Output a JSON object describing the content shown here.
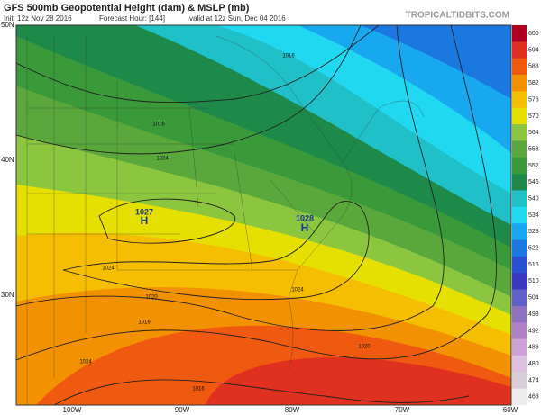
{
  "header": {
    "title": "GFS 500mb Geopotential Height (dam) & MSLP (mb)",
    "init": "Init: 12z Nov 28 2016",
    "forecast_hour": "Forecast Hour: [144]",
    "valid": "valid at 12z Sun, Dec 04 2016",
    "site": "TROPICALTIDBITS.COM"
  },
  "colorbar": {
    "levels": [
      {
        "label": "600",
        "color": "#b00020"
      },
      {
        "label": "594",
        "color": "#e03020"
      },
      {
        "label": "588",
        "color": "#f05a10"
      },
      {
        "label": "582",
        "color": "#f39200"
      },
      {
        "label": "576",
        "color": "#f5be00"
      },
      {
        "label": "570",
        "color": "#e6e000"
      },
      {
        "label": "564",
        "color": "#8cc63f"
      },
      {
        "label": "558",
        "color": "#5aa83c"
      },
      {
        "label": "552",
        "color": "#3a9a3a"
      },
      {
        "label": "546",
        "color": "#1e8a4a"
      },
      {
        "label": "540",
        "color": "#20c0c8"
      },
      {
        "label": "534",
        "color": "#20d8f0"
      },
      {
        "label": "528",
        "color": "#18a8f0"
      },
      {
        "label": "522",
        "color": "#1a78e0"
      },
      {
        "label": "516",
        "color": "#2850d0"
      },
      {
        "label": "510",
        "color": "#3838c0"
      },
      {
        "label": "504",
        "color": "#6060c8"
      },
      {
        "label": "498",
        "color": "#9070c0"
      },
      {
        "label": "492",
        "color": "#b080c8"
      },
      {
        "label": "486",
        "color": "#d0a0d8"
      },
      {
        "label": "480",
        "color": "#e0c0e0"
      },
      {
        "label": "474",
        "color": "#d8d0d8"
      },
      {
        "label": "468",
        "color": "#ececec"
      }
    ]
  },
  "lat_labels": [
    "50N",
    "40N",
    "30N"
  ],
  "lon_labels": [
    "100W",
    "90W",
    "80W",
    "70W",
    "60W"
  ],
  "highs": [
    {
      "symbol": "H",
      "pressure": "1027"
    },
    {
      "symbol": "H",
      "pressure": "1028"
    }
  ],
  "isobar_labels": [
    "1016",
    "1016",
    "1024",
    "1024",
    "1024",
    "1020",
    "1016",
    "1024",
    "1020",
    "1016"
  ]
}
